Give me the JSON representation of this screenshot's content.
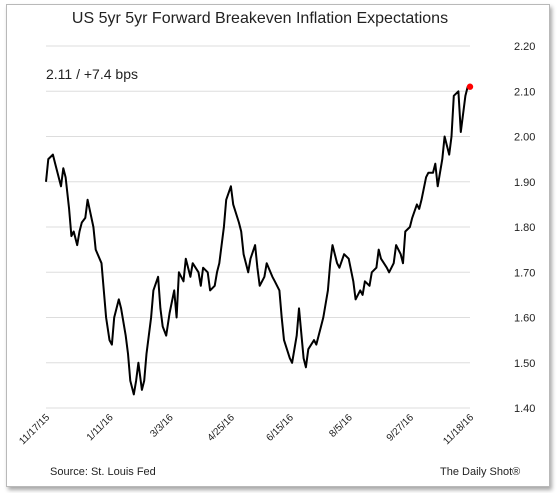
{
  "chart_data": {
    "type": "line",
    "title": "US 5yr 5yr Forward Breakeven Inflation Expectations",
    "annotation": "2.11  /  +7.4 bps",
    "source": "Source: St. Louis Fed",
    "credit": "The Daily Shot®",
    "ylim": [
      1.4,
      2.2
    ],
    "yticks": [
      "1.40",
      "1.50",
      "1.60",
      "1.70",
      "1.80",
      "1.90",
      "2.00",
      "2.10",
      "2.20"
    ],
    "xticks": [
      "11/17/15",
      "1/11/16",
      "3/3/16",
      "4/25/16",
      "6/15/16",
      "8/5/16",
      "9/27/16",
      "11/18/16"
    ],
    "grid": true,
    "colors": {
      "line": "#000000",
      "grid": "#dddddd",
      "last_point": "#ff0000"
    },
    "series": [
      {
        "x": [
          "11/17/15",
          "11/19/15",
          "11/23/15",
          "11/25/15",
          "11/30/15",
          "12/2/15",
          "12/4/15",
          "12/7/15",
          "12/9/15",
          "12/11/15",
          "12/14/15",
          "12/16/15",
          "12/18/15",
          "12/21/15",
          "12/23/15",
          "12/28/15",
          "12/30/15",
          "1/4/16",
          "1/6/16",
          "1/8/16",
          "1/11/16",
          "1/13/16",
          "1/15/16",
          "1/19/16",
          "1/21/16",
          "1/25/16",
          "1/27/16",
          "1/29/16",
          "2/1/16",
          "2/3/16",
          "2/5/16",
          "2/8/16",
          "2/10/16",
          "2/12/16",
          "2/16/16",
          "2/18/16",
          "2/22/16",
          "2/24/16",
          "2/26/16",
          "2/29/16",
          "3/3/16",
          "3/7/16",
          "3/9/16",
          "3/11/16",
          "3/15/16",
          "3/17/16",
          "3/21/16",
          "3/23/16",
          "3/28/16",
          "3/30/16",
          "4/1/16",
          "4/5/16",
          "4/7/16",
          "4/11/16",
          "4/13/16",
          "4/15/16",
          "4/19/16",
          "4/21/16",
          "4/25/16",
          "4/27/16",
          "5/2/16",
          "5/4/16",
          "5/6/16",
          "5/10/16",
          "5/12/16",
          "5/16/16",
          "5/18/16",
          "5/20/16",
          "5/24/16",
          "5/26/16",
          "5/31/16",
          "6/2/16",
          "6/6/16",
          "6/8/16",
          "6/10/16",
          "6/15/16",
          "6/17/16",
          "6/21/16",
          "6/23/16",
          "6/27/16",
          "6/29/16",
          "7/1/16",
          "7/6/16",
          "7/8/16",
          "7/12/16",
          "7/14/16",
          "7/18/16",
          "7/20/16",
          "7/22/16",
          "7/26/16",
          "7/28/16",
          "8/1/16",
          "8/5/16",
          "8/9/16",
          "8/11/16",
          "8/15/16",
          "8/17/16",
          "8/19/16",
          "8/23/16",
          "8/25/16",
          "8/29/16",
          "8/31/16",
          "9/2/16",
          "9/7/16",
          "9/9/16",
          "9/13/16",
          "9/15/16",
          "9/19/16",
          "9/21/16",
          "9/23/16",
          "9/27/16",
          "9/29/16",
          "10/3/16",
          "10/5/16",
          "10/7/16",
          "10/11/16",
          "10/13/16",
          "10/17/16",
          "10/19/16",
          "10/21/16",
          "10/25/16",
          "10/27/16",
          "10/31/16",
          "11/2/16",
          "11/4/16",
          "11/8/16",
          "11/10/16",
          "11/14/16",
          "11/16/16",
          "11/18/16"
        ],
        "values": [
          1.9,
          1.95,
          1.96,
          1.94,
          1.89,
          1.93,
          1.91,
          1.84,
          1.78,
          1.79,
          1.76,
          1.79,
          1.81,
          1.82,
          1.86,
          1.8,
          1.75,
          1.72,
          1.66,
          1.6,
          1.55,
          1.54,
          1.6,
          1.64,
          1.62,
          1.56,
          1.52,
          1.46,
          1.43,
          1.46,
          1.5,
          1.44,
          1.46,
          1.52,
          1.6,
          1.66,
          1.69,
          1.62,
          1.58,
          1.56,
          1.61,
          1.66,
          1.6,
          1.7,
          1.68,
          1.73,
          1.69,
          1.72,
          1.7,
          1.67,
          1.71,
          1.7,
          1.66,
          1.67,
          1.7,
          1.72,
          1.8,
          1.86,
          1.89,
          1.85,
          1.81,
          1.79,
          1.74,
          1.7,
          1.73,
          1.76,
          1.71,
          1.67,
          1.69,
          1.72,
          1.69,
          1.68,
          1.66,
          1.6,
          1.55,
          1.51,
          1.5,
          1.56,
          1.62,
          1.51,
          1.49,
          1.53,
          1.55,
          1.54,
          1.58,
          1.6,
          1.66,
          1.72,
          1.76,
          1.72,
          1.71,
          1.74,
          1.73,
          1.68,
          1.64,
          1.66,
          1.65,
          1.68,
          1.67,
          1.7,
          1.71,
          1.75,
          1.73,
          1.71,
          1.7,
          1.72,
          1.76,
          1.74,
          1.72,
          1.79,
          1.8,
          1.82,
          1.85,
          1.84,
          1.86,
          1.91,
          1.92,
          1.92,
          1.94,
          1.89,
          1.95,
          2.0,
          1.96,
          2.0,
          2.09,
          2.1,
          2.01,
          2.09,
          2.11,
          2.11
        ]
      }
    ]
  }
}
